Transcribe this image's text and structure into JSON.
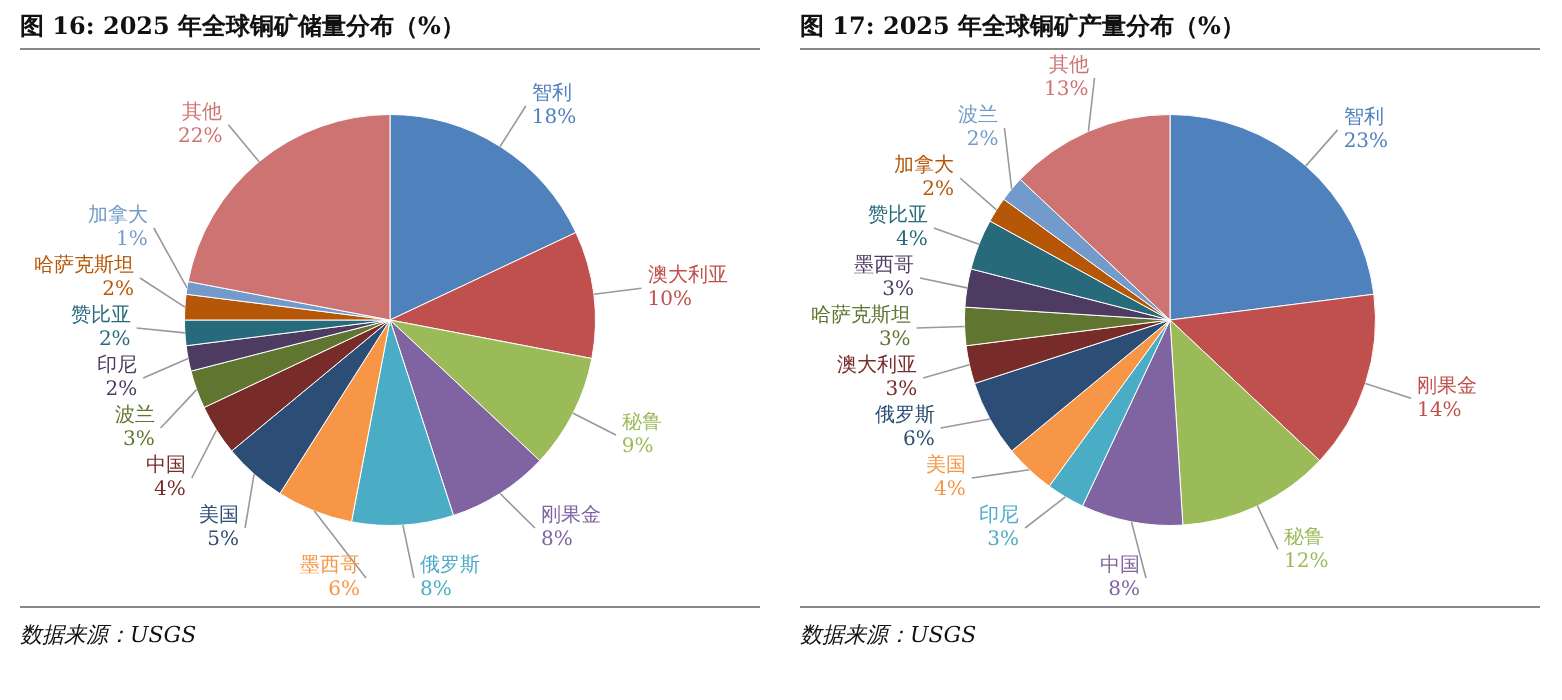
{
  "chart_data": [
    {
      "type": "pie",
      "title": "图 16: 2025 年全球铜矿储量分布（%）",
      "categories": [
        "智利",
        "澳大利亚",
        "秘鲁",
        "刚果金",
        "俄罗斯",
        "墨西哥",
        "美国",
        "中国",
        "波兰",
        "印尼",
        "赞比亚",
        "哈萨克斯坦",
        "加拿大",
        "其他"
      ],
      "values": [
        18,
        10,
        9,
        8,
        8,
        6,
        5,
        4,
        3,
        2,
        2,
        2,
        1,
        22
      ],
      "value_labels": [
        "18%",
        "10%",
        "9%",
        "8%",
        "8%",
        "6%",
        "5%",
        "4%",
        "3%",
        "2%",
        "2%",
        "2%",
        "1%",
        "22%"
      ],
      "colors": [
        "#4f81bd",
        "#c0504d",
        "#9bbb59",
        "#8064a2",
        "#4bacc6",
        "#f79646",
        "#2c4d75",
        "#772c2a",
        "#5f7530",
        "#4d3b62",
        "#276a7c",
        "#b65708",
        "#729aca",
        "#cd7371"
      ],
      "annotations": [
        "数据来源：USGS"
      ]
    },
    {
      "type": "pie",
      "title": "图 17: 2025 年全球铜矿产量分布（%）",
      "categories": [
        "智利",
        "刚果金",
        "秘鲁",
        "中国",
        "印尼",
        "美国",
        "俄罗斯",
        "澳大利亚",
        "哈萨克斯坦",
        "墨西哥",
        "赞比亚",
        "加拿大",
        "波兰",
        "其他"
      ],
      "values": [
        23,
        14,
        12,
        8,
        3,
        4,
        6,
        3,
        3,
        3,
        4,
        2,
        2,
        13
      ],
      "value_labels": [
        "23%",
        "14%",
        "12%",
        "8%",
        "3%",
        "4%",
        "6%",
        "3%",
        "3%",
        "3%",
        "4%",
        "2%",
        "2%",
        "13%"
      ],
      "colors": [
        "#4f81bd",
        "#c0504d",
        "#9bbb59",
        "#8064a2",
        "#4bacc6",
        "#f79646",
        "#2c4d75",
        "#772c2a",
        "#5f7530",
        "#4d3b62",
        "#276a7c",
        "#b65708",
        "#729aca",
        "#cd7371"
      ],
      "annotations": [
        "数据来源：USGS"
      ]
    }
  ]
}
